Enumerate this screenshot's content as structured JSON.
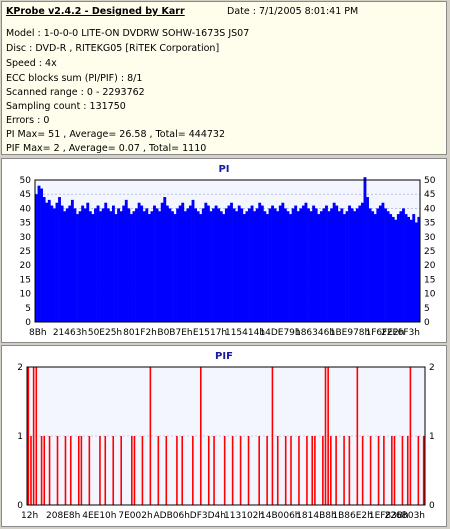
{
  "header": {
    "title": "KProbe v2.4.2 - Designed by Karr",
    "date": "Date : 7/1/2005 8:01:41 PM",
    "model": "Model : 1-0-0-0 LITE-ON DVDRW SOHW-1673S JS07",
    "disc": "Disc : DVD-R , RITEKG05 [RiTEK Corporation]",
    "speed": "Speed : 4x",
    "ecc": "ECC blocks sum (PI/PIF) : 8/1",
    "scanned_range": "Scanned range : 0 - 2293762",
    "sampling": "Sampling count : 131750",
    "errors": "Errors : 0",
    "pi_stats": "PI Max= 51 , Average= 26.58 , Total= 444732",
    "pif_stats": "PIF Max= 2 , Average= 0.07 , Total= 1110"
  },
  "chart_data": [
    {
      "type": "area",
      "title": "PI",
      "color": "#0000ff",
      "ylim": [
        0,
        50
      ],
      "yticks": [
        "0",
        "5",
        "10",
        "15",
        "20",
        "25",
        "30",
        "35",
        "40",
        "45",
        "50"
      ],
      "xticks": [
        "8Bh",
        "21463h",
        "50E25h",
        "801F2h",
        "B0B7Eh",
        "E1517h",
        "115414h",
        "14DE79h",
        "186346h",
        "1BE978h",
        "1F6FE2h",
        "22F6F3h"
      ],
      "grid": true,
      "values": [
        45,
        48,
        47,
        44,
        42,
        43,
        41,
        40,
        42,
        44,
        41,
        39,
        40,
        41,
        43,
        40,
        38,
        39,
        41,
        40,
        42,
        39,
        38,
        40,
        41,
        39,
        40,
        42,
        40,
        39,
        41,
        38,
        40,
        39,
        41,
        43,
        40,
        38,
        39,
        40,
        42,
        41,
        39,
        40,
        38,
        39,
        41,
        40,
        39,
        42,
        44,
        41,
        40,
        39,
        38,
        40,
        41,
        42,
        39,
        40,
        41,
        43,
        40,
        39,
        38,
        40,
        42,
        41,
        39,
        40,
        41,
        40,
        39,
        38,
        40,
        41,
        42,
        40,
        39,
        41,
        40,
        38,
        39,
        40,
        41,
        39,
        40,
        42,
        41,
        39,
        38,
        40,
        41,
        40,
        39,
        41,
        42,
        40,
        39,
        38,
        40,
        41,
        39,
        40,
        41,
        42,
        40,
        39,
        41,
        40,
        38,
        39,
        40,
        41,
        39,
        40,
        42,
        41,
        39,
        40,
        38,
        39,
        41,
        40,
        39,
        40,
        41,
        42,
        51,
        44,
        40,
        39,
        38,
        40,
        41,
        42,
        40,
        39,
        38,
        37,
        36,
        38,
        39,
        40,
        38,
        37,
        36,
        38,
        35,
        37
      ]
    },
    {
      "type": "bar",
      "title": "PIF",
      "color": "#ff0000",
      "ylim": [
        0,
        2
      ],
      "yticks": [
        "0",
        "1",
        "2"
      ],
      "xticks": [
        "12h",
        "208E8h",
        "4EE10h",
        "7E002h",
        "ADB06h",
        "DF3D4h",
        "113102h",
        "14B006h",
        "1814B8h",
        "1B86E2h",
        "1EF83Bh",
        "226B03h"
      ],
      "grid": true,
      "values": [
        2,
        1,
        2,
        2,
        0,
        1,
        1,
        0,
        1,
        0,
        0,
        1,
        0,
        0,
        1,
        0,
        1,
        0,
        0,
        1,
        1,
        0,
        0,
        1,
        0,
        0,
        0,
        1,
        0,
        1,
        0,
        0,
        1,
        0,
        0,
        1,
        0,
        0,
        0,
        1,
        1,
        0,
        0,
        1,
        0,
        0,
        2,
        0,
        0,
        1,
        0,
        0,
        1,
        0,
        0,
        0,
        1,
        0,
        1,
        0,
        0,
        0,
        1,
        0,
        0,
        2,
        0,
        0,
        1,
        0,
        1,
        0,
        0,
        0,
        1,
        0,
        0,
        1,
        0,
        0,
        1,
        0,
        0,
        1,
        0,
        0,
        0,
        1,
        0,
        0,
        1,
        0,
        2,
        0,
        1,
        0,
        0,
        1,
        0,
        1,
        0,
        0,
        1,
        0,
        0,
        1,
        0,
        1,
        1,
        0,
        0,
        1,
        2,
        2,
        1,
        0,
        1,
        0,
        0,
        1,
        0,
        1,
        0,
        0,
        2,
        0,
        1,
        0,
        0,
        1,
        0,
        0,
        1,
        0,
        1,
        0,
        0,
        1,
        1,
        0,
        0,
        1,
        0,
        1,
        2,
        0,
        0,
        1,
        0,
        1
      ]
    }
  ]
}
